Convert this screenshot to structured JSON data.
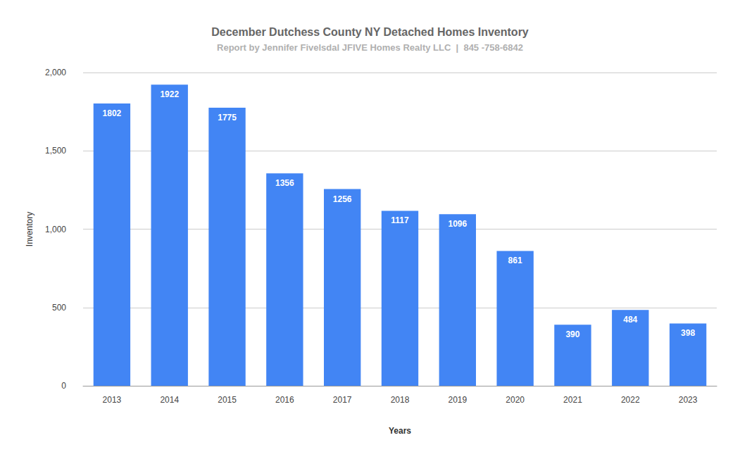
{
  "chart_data": {
    "type": "bar",
    "title": "December Dutchess County NY Detached Homes Inventory",
    "subtitle": "Report by Jennifer Fivelsdal JFIVE Homes Realty LLC  |  845 -758-6842",
    "x_label": "Years",
    "y_label": "Inventory",
    "categories": [
      "2013",
      "2014",
      "2015",
      "2016",
      "2017",
      "2018",
      "2019",
      "2020",
      "2021",
      "2022",
      "2023"
    ],
    "values": [
      1802,
      1922,
      1775,
      1356,
      1256,
      1117,
      1096,
      861,
      390,
      484,
      398
    ],
    "color": "#4285f4",
    "ylim": [
      0,
      2000
    ],
    "yticks": [
      0,
      500,
      1000,
      1500,
      2000
    ],
    "grid": true,
    "data_labels": true
  }
}
